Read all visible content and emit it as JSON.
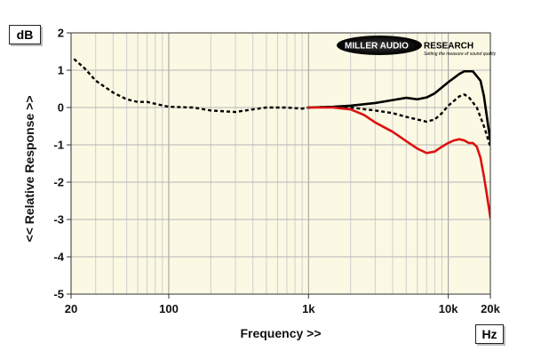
{
  "chart_data": {
    "type": "line",
    "x_scale": "log",
    "xlim": [
      20,
      20000
    ],
    "ylim": [
      -5,
      2
    ],
    "grid": true,
    "xlabel": "Frequency >>",
    "ylabel": "<< Relative Response >>",
    "x_unit": "Hz",
    "y_unit": "dB",
    "x_ticks": [
      {
        "value": 20,
        "label": "20"
      },
      {
        "value": 100,
        "label": "100"
      },
      {
        "value": 1000,
        "label": "1k"
      },
      {
        "value": 10000,
        "label": "10k"
      },
      {
        "value": 20000,
        "label": "20k"
      }
    ],
    "y_ticks": [
      {
        "value": 2,
        "label": "2"
      },
      {
        "value": 1,
        "label": "1"
      },
      {
        "value": 0,
        "label": "0"
      },
      {
        "value": -1,
        "label": "-1"
      },
      {
        "value": -2,
        "label": "-2"
      },
      {
        "value": -3,
        "label": "-3"
      },
      {
        "value": -4,
        "label": "-4"
      },
      {
        "value": -5,
        "label": "-5"
      }
    ],
    "series": [
      {
        "color": "#000000",
        "style": "solid",
        "points": [
          [
            1000,
            0
          ],
          [
            1500,
            0.02
          ],
          [
            2000,
            0.05
          ],
          [
            3000,
            0.12
          ],
          [
            4000,
            0.2
          ],
          [
            5000,
            0.26
          ],
          [
            6000,
            0.22
          ],
          [
            7000,
            0.27
          ],
          [
            8000,
            0.38
          ],
          [
            10000,
            0.68
          ],
          [
            12000,
            0.9
          ],
          [
            13000,
            0.97
          ],
          [
            15000,
            0.97
          ],
          [
            17000,
            0.72
          ],
          [
            18000,
            0.3
          ],
          [
            20000,
            -0.9
          ]
        ]
      },
      {
        "color": "#000000",
        "style": "dashed",
        "points": [
          [
            21,
            1.3
          ],
          [
            25,
            1.05
          ],
          [
            30,
            0.72
          ],
          [
            40,
            0.4
          ],
          [
            50,
            0.22
          ],
          [
            60,
            0.15
          ],
          [
            70,
            0.15
          ],
          [
            80,
            0.1
          ],
          [
            100,
            0.02
          ],
          [
            150,
            0
          ],
          [
            200,
            -0.08
          ],
          [
            300,
            -0.12
          ],
          [
            400,
            -0.05
          ],
          [
            500,
            0
          ],
          [
            700,
            0
          ],
          [
            900,
            -0.03
          ],
          [
            1000,
            0
          ],
          [
            1500,
            0.02
          ],
          [
            2000,
            0
          ],
          [
            3000,
            -0.08
          ],
          [
            4000,
            -0.15
          ],
          [
            5000,
            -0.25
          ],
          [
            6000,
            -0.32
          ],
          [
            7000,
            -0.38
          ],
          [
            8000,
            -0.32
          ],
          [
            9000,
            -0.15
          ],
          [
            10000,
            0.05
          ],
          [
            12000,
            0.3
          ],
          [
            13000,
            0.35
          ],
          [
            14000,
            0.28
          ],
          [
            16000,
            0
          ],
          [
            18000,
            -0.5
          ],
          [
            20000,
            -1.05
          ]
        ]
      },
      {
        "color": "#dd1111",
        "style": "solid",
        "points": [
          [
            1000,
            0
          ],
          [
            1500,
            0
          ],
          [
            2000,
            -0.05
          ],
          [
            2500,
            -0.2
          ],
          [
            3000,
            -0.4
          ],
          [
            4000,
            -0.65
          ],
          [
            5000,
            -0.9
          ],
          [
            6000,
            -1.1
          ],
          [
            7000,
            -1.22
          ],
          [
            8000,
            -1.18
          ],
          [
            9000,
            -1.05
          ],
          [
            10000,
            -0.95
          ],
          [
            11000,
            -0.88
          ],
          [
            12000,
            -0.85
          ],
          [
            13000,
            -0.88
          ],
          [
            14000,
            -0.95
          ],
          [
            15000,
            -0.95
          ],
          [
            16000,
            -1.05
          ],
          [
            17000,
            -1.35
          ],
          [
            18000,
            -1.85
          ],
          [
            19000,
            -2.4
          ],
          [
            20000,
            -2.95
          ]
        ]
      }
    ]
  },
  "logo": {
    "name_part1": "MILLER AUDIO",
    "name_part2": "RESEARCH",
    "tagline": "Setting the measure of sound quality"
  }
}
